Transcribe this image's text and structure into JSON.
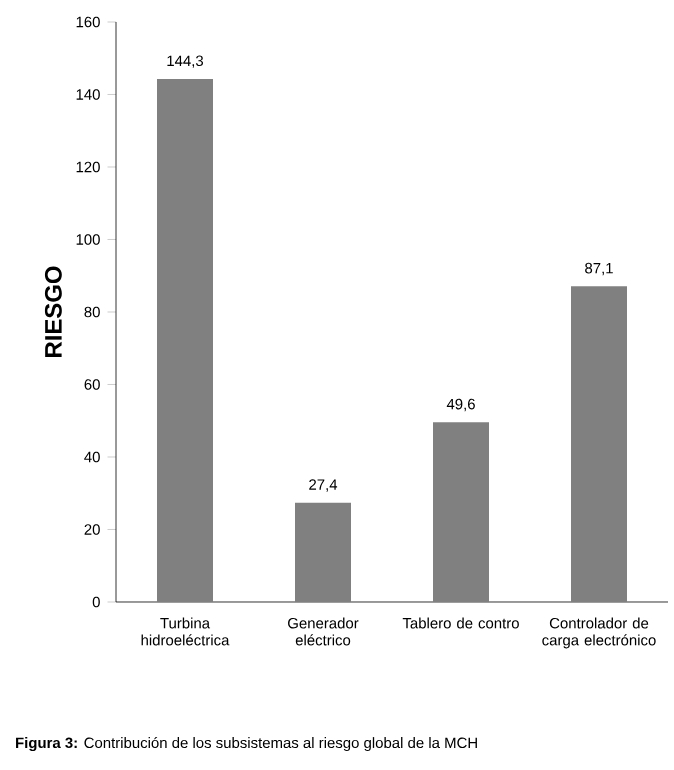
{
  "chart_data": {
    "type": "bar",
    "ylabel": "RIESGO",
    "categories": [
      "Turbina hidroeléctrica",
      "Generador eléctrico",
      "Tablero de contro",
      "Controlador de carga electrónico"
    ],
    "values": [
      144.3,
      27.4,
      49.6,
      87.1
    ],
    "value_labels": [
      "144,3",
      "27,4",
      "49,6",
      "87,1"
    ],
    "color": "#808080",
    "ylim": [
      0,
      160
    ],
    "yticks": [
      0,
      20,
      40,
      60,
      80,
      100,
      120,
      140,
      160
    ],
    "annotations": [
      "**Figura 3:** Contribución de los subsistemas al riesgo global de la MCH"
    ]
  }
}
